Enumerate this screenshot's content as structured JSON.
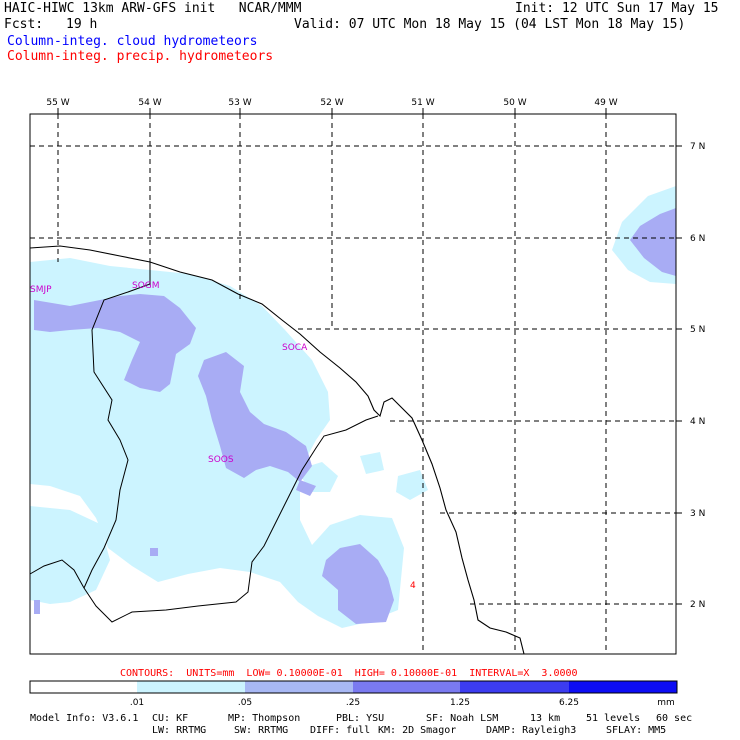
{
  "header": {
    "title": "HAIC-HIWC 13km ARW-GFS init   NCAR/MMM",
    "init": "Init: 12 UTC Sun 17 May 15",
    "fcst_label": "Fcst:",
    "fcst_value": "19 h",
    "valid": "Valid: 07 UTC Mon 18 May 15 (04 LST Mon 18 May 15)",
    "field1": "Column-integ. cloud hydrometeors",
    "field2": "Column-integ. precip. hydrometeors",
    "field1_color": "#0000ff",
    "field2_color": "#ff0000"
  },
  "map": {
    "lon_labels": [
      "55 W",
      "54 W",
      "53 W",
      "52 W",
      "51 W",
      "50 W",
      "49 W"
    ],
    "lat_labels": [
      "7 N",
      "6 N",
      "5 N",
      "4 N",
      "3 N",
      "2 N"
    ],
    "stations": [
      "SMJP",
      "SOGM",
      "SOCA",
      "SOOS"
    ],
    "station_color": "#cc00cc",
    "precip_marker": "4"
  },
  "contours": {
    "text": "CONTOURS:  UNITS=mm  LOW= 0.10000E-01  HIGH= 0.10000E-01  INTERVAL=X  3.0000",
    "color": "#ff0000"
  },
  "colorbar": {
    "labels": [
      ".01",
      ".05",
      ".25",
      "1.25",
      "6.25"
    ],
    "units": "mm",
    "colors": [
      "#ffffff",
      "#ccf4ff",
      "#a8b8f4",
      "#7a7af0",
      "#3c3cf0",
      "#0c0cf4"
    ]
  },
  "footer": {
    "line1": [
      "Model Info: V3.6.1",
      "CU: KF",
      "MP: Thompson",
      "PBL: YSU",
      "SF: Noah LSM",
      "13 km",
      "51 levels",
      "60 sec"
    ],
    "line2": [
      "LW: RRTMG",
      "SW: RRTMG",
      "DIFF: full",
      "KM: 2D Smagor",
      "DAMP: Rayleigh3",
      "SFLAY: MM5"
    ]
  }
}
